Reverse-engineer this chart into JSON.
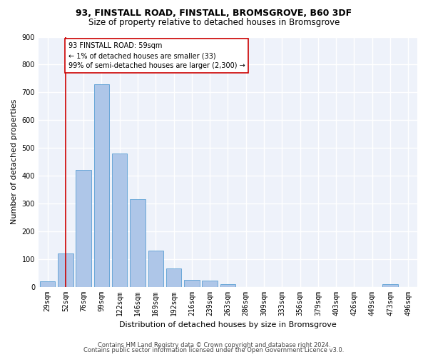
{
  "title1": "93, FINSTALL ROAD, FINSTALL, BROMSGROVE, B60 3DF",
  "title2": "Size of property relative to detached houses in Bromsgrove",
  "xlabel": "Distribution of detached houses by size in Bromsgrove",
  "ylabel": "Number of detached properties",
  "categories": [
    "29sqm",
    "52sqm",
    "76sqm",
    "99sqm",
    "122sqm",
    "146sqm",
    "169sqm",
    "192sqm",
    "216sqm",
    "239sqm",
    "263sqm",
    "286sqm",
    "309sqm",
    "333sqm",
    "356sqm",
    "379sqm",
    "403sqm",
    "426sqm",
    "449sqm",
    "473sqm",
    "496sqm"
  ],
  "values": [
    20,
    120,
    420,
    730,
    480,
    315,
    130,
    65,
    25,
    22,
    10,
    0,
    0,
    0,
    0,
    0,
    0,
    0,
    0,
    10,
    0
  ],
  "bar_color": "#aec6e8",
  "bar_edge_color": "#5a9fd4",
  "vline_x_idx": 1,
  "vline_color": "#cc0000",
  "annotation_text": "93 FINSTALL ROAD: 59sqm\n← 1% of detached houses are smaller (33)\n99% of semi-detached houses are larger (2,300) →",
  "annotation_box_color": "#ffffff",
  "annotation_box_edge_color": "#cc0000",
  "footnote1": "Contains HM Land Registry data © Crown copyright and database right 2024.",
  "footnote2": "Contains public sector information licensed under the Open Government Licence v3.0.",
  "ylim": [
    0,
    900
  ],
  "yticks": [
    0,
    100,
    200,
    300,
    400,
    500,
    600,
    700,
    800,
    900
  ],
  "bg_color": "#eef2fa",
  "grid_color": "#ffffff",
  "title1_fontsize": 9,
  "title2_fontsize": 8.5,
  "ylabel_fontsize": 8,
  "xlabel_fontsize": 8,
  "tick_fontsize": 7,
  "footnote_fontsize": 6,
  "annotation_fontsize": 7
}
